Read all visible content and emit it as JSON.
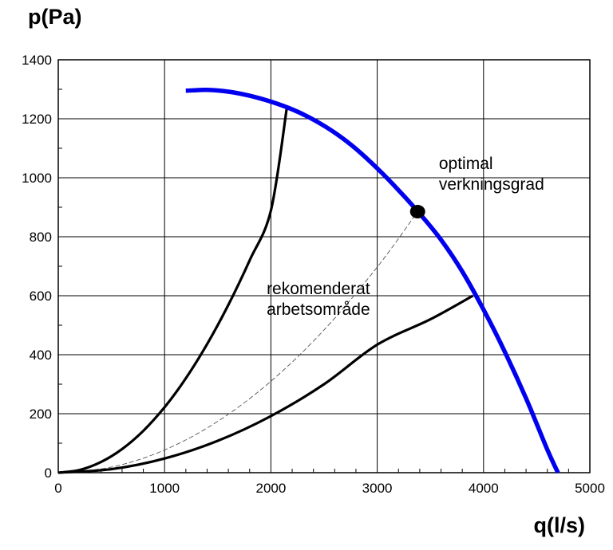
{
  "chart_data": {
    "type": "line",
    "title": "",
    "xlabel": "q(l/s)",
    "ylabel": "p(Pa)",
    "xlim": [
      0,
      5000
    ],
    "ylim": [
      0,
      1400
    ],
    "x_ticks": [
      0,
      1000,
      2000,
      3000,
      4000,
      5000
    ],
    "y_ticks": [
      0,
      200,
      400,
      600,
      800,
      1000,
      1200,
      1400
    ],
    "x_tick_labels": [
      "0",
      "1000",
      "2000",
      "3000",
      "4000",
      "5000"
    ],
    "y_tick_labels": [
      "0",
      "200",
      "400",
      "600",
      "800",
      "1000",
      "1200",
      "1400"
    ],
    "grid": true,
    "colors": {
      "fan_curve": "#0000ee",
      "system_curves": "#000000",
      "optimal_curve": "#555555"
    },
    "series": [
      {
        "role": "fan-curve",
        "x": [
          1200,
          1400,
          1600,
          1800,
          2000,
          2200,
          2400,
          2600,
          2800,
          3000,
          3200,
          3400,
          3600,
          3800,
          4000,
          4200,
          4400,
          4600,
          4700
        ],
        "y": [
          1295,
          1298,
          1292,
          1278,
          1258,
          1232,
          1197,
          1153,
          1098,
          1032,
          958,
          878,
          790,
          682,
          553,
          410,
          252,
          78,
          0
        ]
      },
      {
        "role": "system-curve-upper",
        "x": [
          0,
          200,
          400,
          600,
          800,
          1000,
          1200,
          1400,
          1600,
          1800,
          2000,
          2150
        ],
        "y": [
          0,
          9,
          36,
          80,
          142,
          222,
          320,
          436,
          569,
          720,
          889,
          1238
        ]
      },
      {
        "role": "system-curve-lower",
        "x": [
          0,
          500,
          1000,
          1500,
          2000,
          2500,
          3000,
          3500,
          3900
        ],
        "y": [
          0,
          12,
          48,
          108,
          192,
          300,
          434,
          520,
          600
        ]
      },
      {
        "role": "optimal-efficiency-curve",
        "x": [
          0,
          500,
          1000,
          1500,
          2000,
          2500,
          3000,
          3380
        ],
        "y": [
          0,
          19,
          77,
          174,
          310,
          484,
          697,
          885
        ]
      }
    ],
    "optimal_point": {
      "x": 3380,
      "y": 885
    },
    "annotations": [
      {
        "lines": [
          "optimal",
          "verkningsgrad"
        ],
        "x": 3580,
        "y": 1030
      },
      {
        "lines": [
          "rekomenderat",
          "arbetsområde"
        ],
        "x": 1960,
        "y": 605
      }
    ]
  }
}
